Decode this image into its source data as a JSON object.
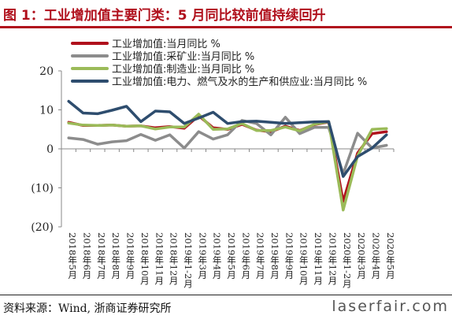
{
  "header": {
    "title": "图 1：工业增加值主要门类：5 月同比较前值持续回升"
  },
  "footer": {
    "source": "资料来源：Wind, 浙商证券研究所",
    "watermark": "laserfair.com"
  },
  "chart_data": {
    "type": "line",
    "title": "",
    "xlabel": "",
    "ylabel": "",
    "ylim": [
      -20,
      20
    ],
    "yticks": [
      20,
      10,
      0,
      -10,
      -20
    ],
    "ytick_labels": [
      "20",
      "10",
      "0",
      "(10)",
      "(20)"
    ],
    "grid": false,
    "legend_position": "top-left",
    "categories": [
      "2018年5月",
      "2018年6月",
      "2018年7月",
      "2018年8月",
      "2018年9月",
      "2018年10月",
      "2018年11月",
      "2018年12月",
      "2019年1-2月",
      "2019年3月",
      "2019年4月",
      "2019年5月",
      "2019年6月",
      "2019年7月",
      "2019年8月",
      "2019年9月",
      "2019年10月",
      "2019年11月",
      "2019年12月",
      "2020年1-2月",
      "2020年3月",
      "2020年4月",
      "2020年5月"
    ],
    "series": [
      {
        "name": "工业增加值:当月同比 %",
        "color": "#b0101c",
        "values": [
          6.8,
          6.0,
          6.0,
          6.1,
          5.8,
          5.9,
          5.4,
          5.7,
          5.3,
          8.5,
          5.4,
          5.0,
          6.3,
          4.8,
          4.4,
          5.8,
          4.7,
          6.2,
          6.9,
          -13.5,
          -1.1,
          3.9,
          4.4
        ]
      },
      {
        "name": "工业增加值:采矿业:当月同比 %",
        "color": "#8c8c8c",
        "values": [
          2.8,
          2.4,
          1.2,
          1.8,
          2.1,
          3.7,
          2.2,
          3.6,
          0.2,
          4.4,
          2.5,
          3.6,
          7.3,
          6.5,
          3.6,
          8.1,
          3.9,
          5.5,
          5.5,
          -6.4,
          4.0,
          0.2,
          0.9
        ]
      },
      {
        "name": "工业增加值:制造业:当月同比 %",
        "color": "#9bbb59",
        "values": [
          6.6,
          6.1,
          6.0,
          6.1,
          5.8,
          5.9,
          5.1,
          5.6,
          5.6,
          8.9,
          5.0,
          5.1,
          6.5,
          4.7,
          4.7,
          5.6,
          4.6,
          6.3,
          7.0,
          -15.7,
          -1.8,
          5.0,
          5.2
        ]
      },
      {
        "name": "工业增加值:电力、燃气及水的生产和供应业:当月同比 %",
        "color": "#2e4d6e",
        "values": [
          12.2,
          9.2,
          9.0,
          9.9,
          10.9,
          7.0,
          9.7,
          9.5,
          6.5,
          7.9,
          9.4,
          6.5,
          7.0,
          7.1,
          6.8,
          6.5,
          6.7,
          6.9,
          7.0,
          -7.1,
          -2.0,
          0.2,
          3.6
        ]
      }
    ]
  }
}
